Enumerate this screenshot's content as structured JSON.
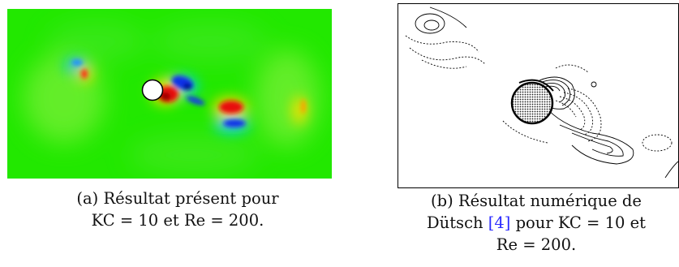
{
  "subfigure_a": {
    "caption_line1": "(a) Résultat présent pour",
    "caption_line2": "KC = 10 et Re = 200.",
    "colors": {
      "background": "#22e800",
      "positive": "#e01010",
      "negative": "#1040e0",
      "cylinder": "#ffffff"
    }
  },
  "subfigure_b": {
    "caption_line1": "(b) Résultat numérique de",
    "caption_line2_prefix": "Dütsch ",
    "caption_line2_ref": "[4]",
    "caption_line2_suffix": " pour KC = 10 et",
    "caption_line3": "Re = 200."
  }
}
